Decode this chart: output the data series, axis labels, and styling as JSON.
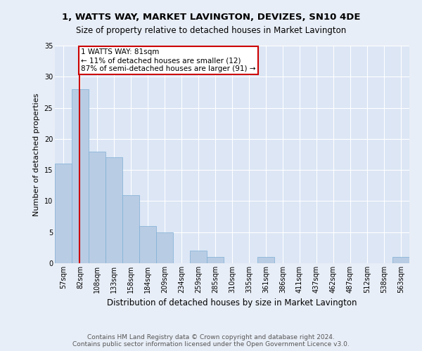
{
  "title1": "1, WATTS WAY, MARKET LAVINGTON, DEVIZES, SN10 4DE",
  "title2": "Size of property relative to detached houses in Market Lavington",
  "xlabel": "Distribution of detached houses by size in Market Lavington",
  "ylabel": "Number of detached properties",
  "footer1": "Contains HM Land Registry data © Crown copyright and database right 2024.",
  "footer2": "Contains public sector information licensed under the Open Government Licence v3.0.",
  "bin_labels": [
    "57sqm",
    "82sqm",
    "108sqm",
    "133sqm",
    "158sqm",
    "184sqm",
    "209sqm",
    "234sqm",
    "259sqm",
    "285sqm",
    "310sqm",
    "335sqm",
    "361sqm",
    "386sqm",
    "411sqm",
    "437sqm",
    "462sqm",
    "487sqm",
    "512sqm",
    "538sqm",
    "563sqm"
  ],
  "bar_values": [
    16,
    28,
    18,
    17,
    11,
    6,
    5,
    0,
    2,
    1,
    0,
    0,
    1,
    0,
    0,
    0,
    0,
    0,
    0,
    0,
    1
  ],
  "bar_color": "#b8cce4",
  "bar_edge_color": "#7fafd4",
  "annotation_box_color": "#cc0000",
  "annotation_text": "1 WATTS WAY: 81sqm\n← 11% of detached houses are smaller (12)\n87% of semi-detached houses are larger (91) →",
  "ylim": [
    0,
    35
  ],
  "yticks": [
    0,
    5,
    10,
    15,
    20,
    25,
    30,
    35
  ],
  "background_color": "#e8eef7",
  "axes_background": "#dce6f5",
  "title1_fontsize": 9.5,
  "title2_fontsize": 8.5,
  "ylabel_fontsize": 8.0,
  "xlabel_fontsize": 8.5,
  "tick_fontsize": 7.0,
  "footer_fontsize": 6.5,
  "ann_fontsize": 7.5
}
